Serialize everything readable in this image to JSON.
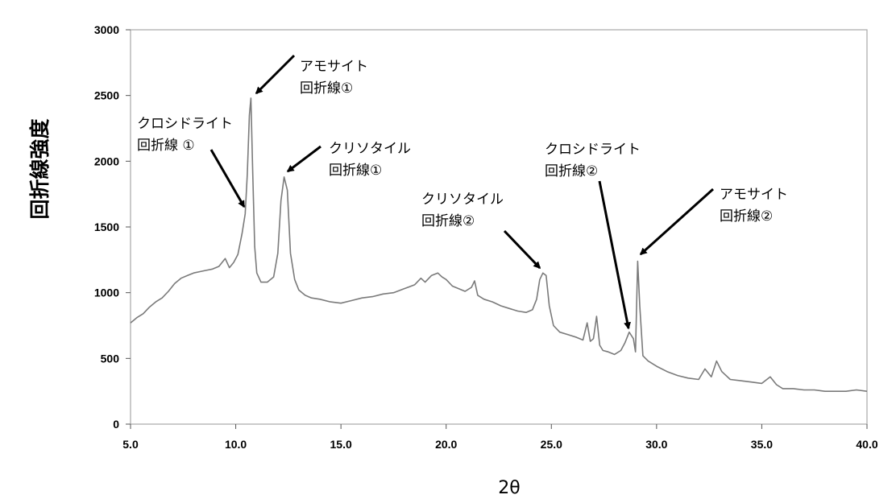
{
  "chart_data": {
    "type": "line",
    "title": "",
    "xlabel": "2θ",
    "ylabel": "回折線強度",
    "xlim": [
      5.0,
      40.0
    ],
    "ylim": [
      0,
      3000
    ],
    "x_ticks": [
      "5.0",
      "10.0",
      "15.0",
      "20.0",
      "25.0",
      "30.0",
      "35.0",
      "40.0"
    ],
    "y_ticks": [
      "0",
      "500",
      "1000",
      "1500",
      "2000",
      "2500",
      "3000"
    ],
    "grid": false,
    "series": [
      {
        "color": "#7a7a7a",
        "x": [
          5.0,
          5.3,
          5.6,
          5.9,
          6.2,
          6.5,
          6.8,
          7.1,
          7.4,
          7.7,
          8.0,
          8.3,
          8.6,
          8.9,
          9.2,
          9.5,
          9.7,
          9.9,
          10.1,
          10.3,
          10.45,
          10.55,
          10.65,
          10.72,
          10.8,
          10.9,
          11.0,
          11.2,
          11.5,
          11.8,
          12.0,
          12.15,
          12.3,
          12.45,
          12.6,
          12.8,
          13.0,
          13.3,
          13.6,
          14.0,
          14.5,
          15.0,
          15.5,
          16.0,
          16.5,
          17.0,
          17.5,
          18.0,
          18.5,
          18.8,
          19.0,
          19.3,
          19.6,
          19.8,
          20.0,
          20.3,
          20.6,
          20.9,
          21.2,
          21.35,
          21.5,
          21.8,
          22.2,
          22.6,
          23.0,
          23.4,
          23.8,
          24.1,
          24.3,
          24.45,
          24.6,
          24.75,
          24.9,
          25.1,
          25.4,
          25.8,
          26.2,
          26.5,
          26.7,
          26.85,
          27.0,
          27.15,
          27.3,
          27.45,
          27.7,
          28.0,
          28.3,
          28.5,
          28.7,
          28.9,
          29.0,
          29.1,
          29.2,
          29.35,
          29.6,
          30.0,
          30.5,
          31.0,
          31.5,
          32.0,
          32.3,
          32.6,
          32.85,
          33.1,
          33.5,
          34.0,
          34.5,
          35.0,
          35.4,
          35.7,
          36.0,
          36.5,
          37.0,
          37.5,
          38.0,
          38.5,
          39.0,
          39.5,
          40.0
        ],
        "values": [
          770,
          810,
          840,
          890,
          930,
          960,
          1010,
          1070,
          1110,
          1130,
          1150,
          1160,
          1170,
          1180,
          1200,
          1260,
          1190,
          1230,
          1290,
          1450,
          1600,
          1900,
          2350,
          2480,
          1950,
          1350,
          1150,
          1080,
          1080,
          1120,
          1300,
          1700,
          1880,
          1780,
          1300,
          1100,
          1020,
          980,
          960,
          950,
          930,
          920,
          940,
          960,
          970,
          990,
          1000,
          1030,
          1060,
          1110,
          1080,
          1130,
          1150,
          1120,
          1100,
          1050,
          1030,
          1010,
          1040,
          1090,
          980,
          950,
          930,
          900,
          880,
          860,
          850,
          870,
          950,
          1100,
          1150,
          1130,
          900,
          750,
          700,
          680,
          660,
          640,
          770,
          630,
          650,
          820,
          600,
          560,
          550,
          530,
          560,
          620,
          700,
          650,
          550,
          1240,
          900,
          520,
          480,
          440,
          400,
          370,
          350,
          340,
          420,
          360,
          480,
          400,
          340,
          330,
          320,
          310,
          360,
          300,
          270,
          270,
          260,
          260,
          250,
          250,
          250,
          260,
          250
        ]
      }
    ],
    "annotations": [
      {
        "lines": [
          "アモサイト",
          "回折線①"
        ],
        "x": 10.7,
        "y": 2480
      },
      {
        "lines": [
          "クロシドライト",
          "回折線 ①"
        ],
        "x": 10.5,
        "y": 1620
      },
      {
        "lines": [
          "クリソタイル",
          "回折線①"
        ],
        "x": 12.3,
        "y": 1880
      },
      {
        "lines": [
          "クリソタイル",
          "回折線②"
        ],
        "x": 24.6,
        "y": 1160
      },
      {
        "lines": [
          "クロシドライト",
          "回折線②"
        ],
        "x": 28.8,
        "y": 700
      },
      {
        "lines": [
          "アモサイト",
          "回折線②"
        ],
        "x": 29.05,
        "y": 1240
      }
    ]
  }
}
